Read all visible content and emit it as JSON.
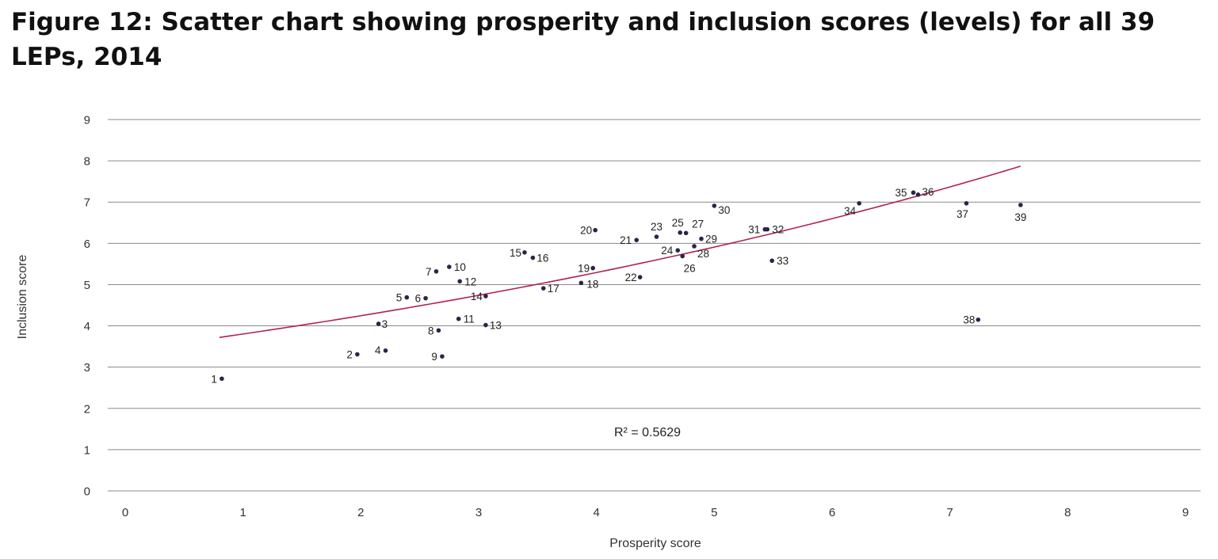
{
  "title": "Figure 12: Scatter chart showing prosperity and inclusion scores (levels) for all 39 LEPs, 2014",
  "colors": {
    "point": "#2b2448",
    "trend": "#b0234e",
    "grid": "#8a8a8a",
    "text": "#333333"
  },
  "chart_data": {
    "type": "scatter",
    "xlabel": "Prosperity score",
    "ylabel": "Inclusion score",
    "xlim": [
      0,
      9
    ],
    "ylim": [
      0,
      9
    ],
    "xticks": [
      "0",
      "1",
      "2",
      "3",
      "4",
      "5",
      "6",
      "7",
      "8",
      "9"
    ],
    "yticks": [
      "0",
      "1",
      "2",
      "3",
      "4",
      "5",
      "6",
      "7",
      "8",
      "9"
    ],
    "grid": "horizontal",
    "annotation": "R² = 0.5629",
    "trendline": {
      "type": "exponential",
      "x_range": [
        0.8,
        7.6
      ],
      "y_range": [
        3.72,
        7.87
      ]
    },
    "points": [
      {
        "label": "1",
        "x": 0.82,
        "y": 2.72
      },
      {
        "label": "2",
        "x": 1.97,
        "y": 3.31
      },
      {
        "label": "3",
        "x": 2.15,
        "y": 4.05
      },
      {
        "label": "4",
        "x": 2.21,
        "y": 3.4
      },
      {
        "label": "5",
        "x": 2.39,
        "y": 4.69
      },
      {
        "label": "6",
        "x": 2.55,
        "y": 4.67
      },
      {
        "label": "7",
        "x": 2.64,
        "y": 5.32
      },
      {
        "label": "8",
        "x": 2.66,
        "y": 3.89
      },
      {
        "label": "9",
        "x": 2.69,
        "y": 3.26
      },
      {
        "label": "10",
        "x": 2.75,
        "y": 5.43
      },
      {
        "label": "11",
        "x": 2.83,
        "y": 4.17
      },
      {
        "label": "12",
        "x": 2.84,
        "y": 5.08
      },
      {
        "label": "13",
        "x": 3.06,
        "y": 4.02
      },
      {
        "label": "14",
        "x": 3.06,
        "y": 4.72
      },
      {
        "label": "15",
        "x": 3.39,
        "y": 5.78
      },
      {
        "label": "16",
        "x": 3.46,
        "y": 5.65
      },
      {
        "label": "17",
        "x": 3.55,
        "y": 4.91
      },
      {
        "label": "18",
        "x": 3.87,
        "y": 5.04
      },
      {
        "label": "19",
        "x": 3.97,
        "y": 5.4
      },
      {
        "label": "20",
        "x": 3.99,
        "y": 6.32
      },
      {
        "label": "21",
        "x": 4.34,
        "y": 6.08
      },
      {
        "label": "22",
        "x": 4.37,
        "y": 5.18
      },
      {
        "label": "23",
        "x": 4.51,
        "y": 6.16
      },
      {
        "label": "24",
        "x": 4.69,
        "y": 5.83
      },
      {
        "label": "25",
        "x": 4.71,
        "y": 6.26
      },
      {
        "label": "26",
        "x": 4.73,
        "y": 5.69
      },
      {
        "label": "27",
        "x": 4.76,
        "y": 6.25
      },
      {
        "label": "28",
        "x": 4.83,
        "y": 5.93
      },
      {
        "label": "29",
        "x": 4.89,
        "y": 6.11
      },
      {
        "label": "30",
        "x": 5.0,
        "y": 6.91
      },
      {
        "label": "31",
        "x": 5.43,
        "y": 6.34
      },
      {
        "label": "32",
        "x": 5.45,
        "y": 6.34
      },
      {
        "label": "33",
        "x": 5.49,
        "y": 5.58
      },
      {
        "label": "34",
        "x": 6.23,
        "y": 6.97
      },
      {
        "label": "35",
        "x": 6.69,
        "y": 7.23
      },
      {
        "label": "36",
        "x": 6.73,
        "y": 7.18
      },
      {
        "label": "37",
        "x": 7.14,
        "y": 6.97
      },
      {
        "label": "38",
        "x": 7.24,
        "y": 4.15
      },
      {
        "label": "39",
        "x": 7.6,
        "y": 6.93
      }
    ]
  }
}
